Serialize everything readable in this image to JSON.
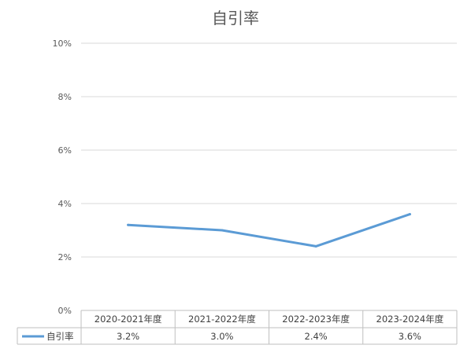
{
  "chart_data": {
    "type": "line",
    "title": "自引率",
    "categories": [
      "2020-2021年度",
      "2021-2022年度",
      "2022-2023年度",
      "2023-2024年度"
    ],
    "series": [
      {
        "name": "自引率",
        "values": [
          3.2,
          3.0,
          2.4,
          3.6
        ],
        "labels": [
          "3.2%",
          "3.0%",
          "2.4%",
          "3.6%"
        ],
        "color": "#5B9BD5"
      }
    ],
    "y_ticks": [
      "0%",
      "2%",
      "4%",
      "6%",
      "8%",
      "10%"
    ],
    "ylim": [
      0,
      10
    ],
    "grid": true,
    "legend": "data-table-left",
    "colors": {
      "grid": "#D9D9D9",
      "text": "#595959",
      "title": "#595959",
      "table_border": "#BFBFBF"
    }
  }
}
